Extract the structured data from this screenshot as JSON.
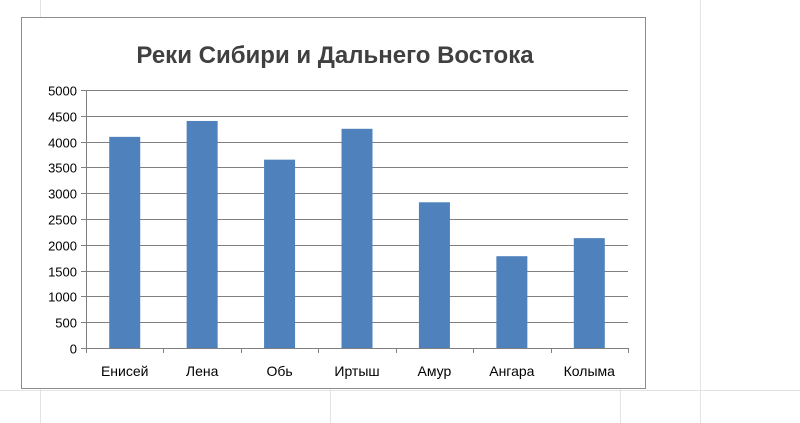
{
  "chart_data": {
    "type": "bar",
    "title": "Реки Сибири и Дальнего Востока",
    "categories": [
      "Енисей",
      "Лена",
      "Обь",
      "Иртыш",
      "Амур",
      "Ангара",
      "Колыма"
    ],
    "values": [
      4092,
      4400,
      3650,
      4248,
      2824,
      1779,
      2129
    ],
    "xlabel": "",
    "ylabel": "",
    "ylim": [
      0,
      5000
    ],
    "yticks": [
      "0",
      "500",
      "1000",
      "1500",
      "2000",
      "2500",
      "3000",
      "3500",
      "4000",
      "4500",
      "5000"
    ],
    "grid": true,
    "legend": "none",
    "bar_color": "#4f81bd"
  }
}
